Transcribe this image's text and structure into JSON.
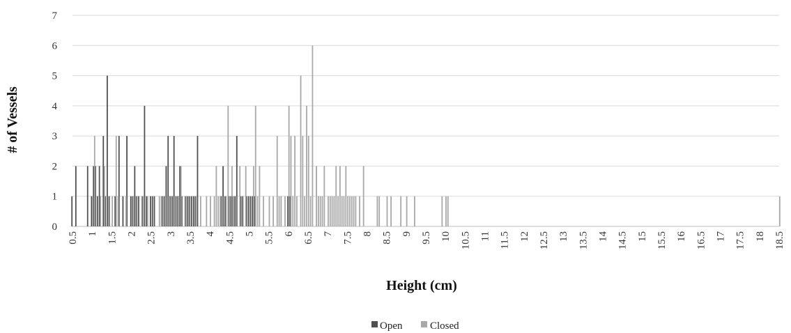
{
  "chart_data": {
    "type": "bar",
    "ylabel": "# of Vessels",
    "xlabel": "Height (cm)",
    "ylim": [
      0,
      7
    ],
    "yticks": [
      "0",
      "1",
      "2",
      "3",
      "4",
      "5",
      "6",
      "7"
    ],
    "xlim": [
      0.5,
      18.5
    ],
    "xticks": [
      "0.5",
      "1",
      "1.5",
      "2",
      "2.5",
      "3",
      "3.5",
      "4",
      "4.5",
      "5",
      "5.5",
      "6",
      "6.5",
      "7",
      "7.5",
      "8",
      "8.5",
      "9",
      "9.5",
      "10",
      "10.5",
      "11",
      "11.5",
      "12",
      "12.5",
      "13",
      "13.5",
      "14",
      "14.5",
      "15",
      "15.5",
      "16",
      "16.5",
      "17",
      "17.5",
      "18",
      "18.5"
    ],
    "grid": true,
    "legend_position": "bottom",
    "colors": {
      "Open": "#505050",
      "Closed": "#a8a8a8",
      "grid": "#d9d9d9"
    },
    "series": [
      {
        "name": "Open",
        "x": [
          0.5,
          0.6,
          0.9,
          1.0,
          1.05,
          1.1,
          1.15,
          1.2,
          1.3,
          1.35,
          1.4,
          1.45,
          1.6,
          1.7,
          1.8,
          1.9,
          2.0,
          2.05,
          2.1,
          2.15,
          2.2,
          2.3,
          2.35,
          2.4,
          2.5,
          2.55,
          2.6,
          2.8,
          2.85,
          2.9,
          2.95,
          3.0,
          3.05,
          3.1,
          3.15,
          3.2,
          3.25,
          3.3,
          3.4,
          3.45,
          3.5,
          3.55,
          3.6,
          3.65,
          3.7,
          4.3,
          4.35,
          4.4,
          4.5,
          4.55,
          4.6,
          4.65,
          4.7,
          4.8,
          4.85,
          4.95,
          5.0,
          5.05,
          5.1,
          5.15,
          6.0,
          6.05
        ],
        "values": [
          1,
          2,
          2,
          1,
          2,
          2,
          1,
          2,
          3,
          1,
          5,
          1,
          1,
          3,
          1,
          3,
          1,
          1,
          2,
          1,
          1,
          1,
          4,
          1,
          1,
          1,
          1,
          1,
          1,
          2,
          3,
          1,
          1,
          3,
          1,
          1,
          2,
          1,
          1,
          1,
          1,
          1,
          1,
          1,
          3,
          1,
          2,
          1,
          1,
          1,
          1,
          1,
          3,
          1,
          1,
          1,
          1,
          1,
          1,
          1,
          1,
          1
        ]
      },
      {
        "name": "Closed",
        "x": [
          1.0,
          1.05,
          1.2,
          1.3,
          1.4,
          1.5,
          1.6,
          1.65,
          1.85,
          2.0,
          2.1,
          2.25,
          2.4,
          2.7,
          2.75,
          3.05,
          3.25,
          3.35,
          3.45,
          3.6,
          3.75,
          3.9,
          4.0,
          4.1,
          4.15,
          4.2,
          4.25,
          4.4,
          4.45,
          4.55,
          4.65,
          4.75,
          4.8,
          4.9,
          5.1,
          5.15,
          5.2,
          5.25,
          5.35,
          5.5,
          5.6,
          5.7,
          5.75,
          5.8,
          5.9,
          6.0,
          6.05,
          6.1,
          6.15,
          6.2,
          6.3,
          6.35,
          6.4,
          6.45,
          6.5,
          6.55,
          6.6,
          6.7,
          6.75,
          6.8,
          6.85,
          6.9,
          7.0,
          7.05,
          7.1,
          7.15,
          7.2,
          7.25,
          7.3,
          7.35,
          7.4,
          7.45,
          7.5,
          7.55,
          7.6,
          7.65,
          7.7,
          7.8,
          7.9,
          8.25,
          8.3,
          8.5,
          8.6,
          8.85,
          9.0,
          9.2,
          9.9,
          10.0,
          10.05,
          18.5
        ],
        "values": [
          1,
          3,
          1,
          2,
          1,
          1,
          3,
          1,
          1,
          1,
          1,
          1,
          1,
          1,
          1,
          1,
          2,
          1,
          1,
          1,
          1,
          1,
          1,
          1,
          2,
          1,
          1,
          1,
          4,
          2,
          1,
          2,
          1,
          2,
          2,
          4,
          1,
          2,
          1,
          1,
          1,
          3,
          1,
          1,
          1,
          4,
          3,
          1,
          3,
          1,
          5,
          3,
          1,
          4,
          3,
          1,
          6,
          2,
          1,
          1,
          1,
          2,
          1,
          1,
          1,
          1,
          2,
          1,
          2,
          1,
          1,
          2,
          1,
          1,
          1,
          1,
          1,
          1,
          2,
          1,
          1,
          1,
          1,
          1,
          1,
          1,
          1,
          1,
          1,
          1
        ]
      }
    ]
  }
}
